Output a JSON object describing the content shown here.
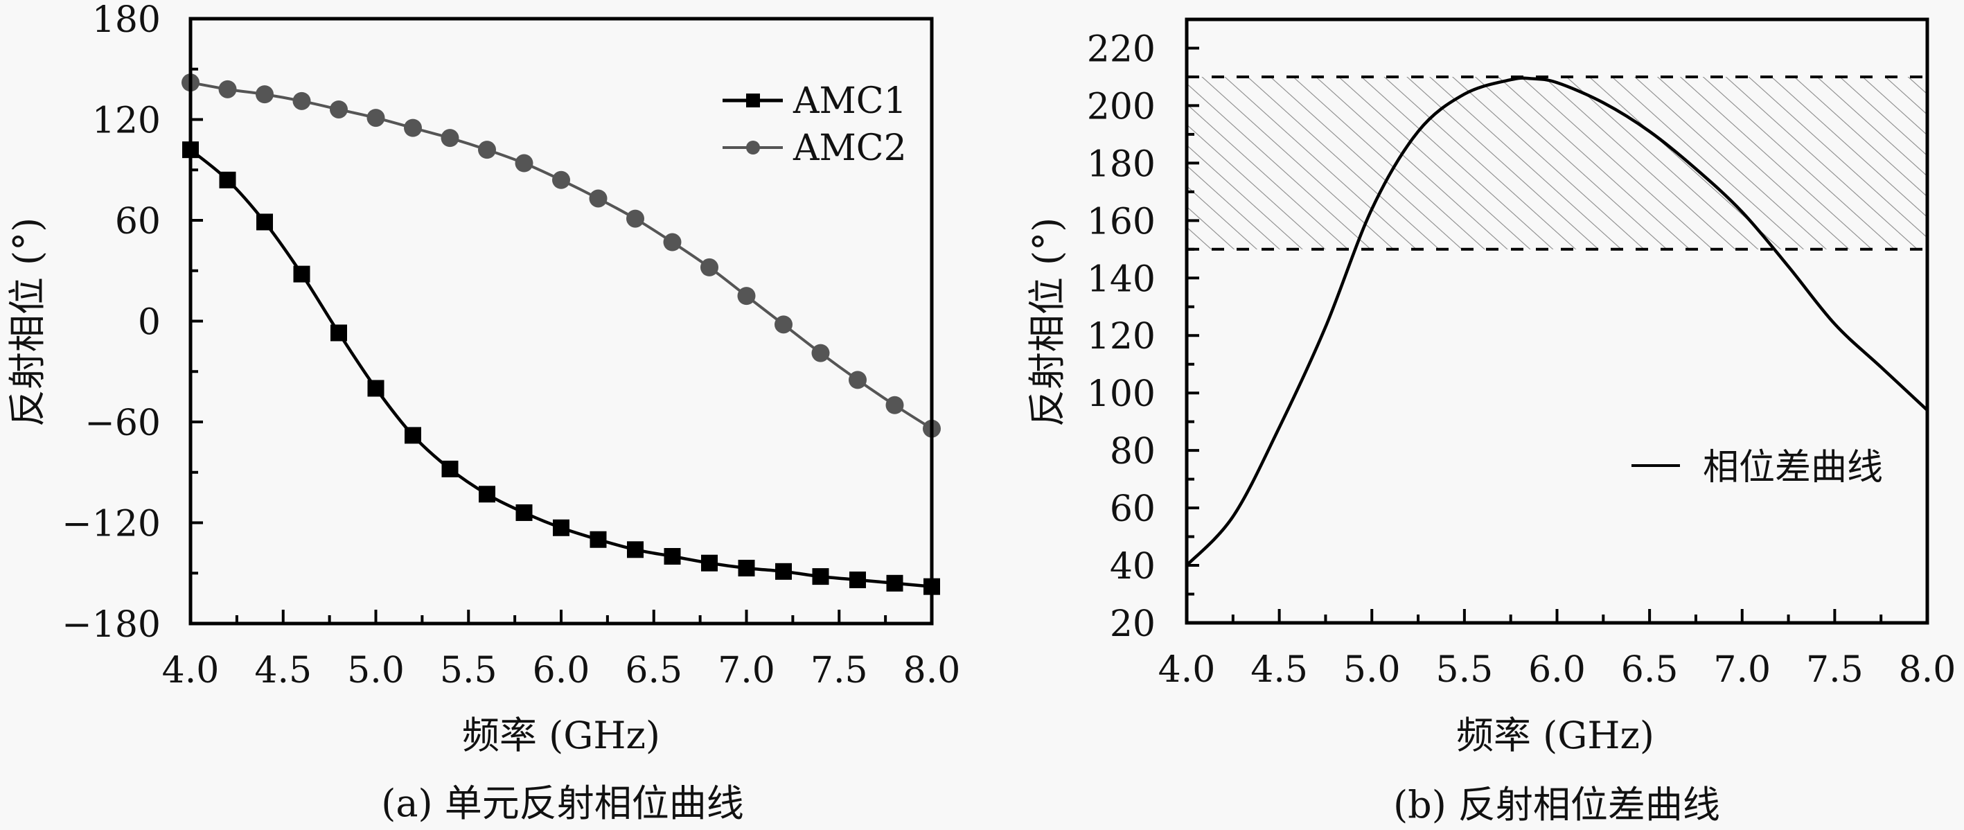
{
  "chart_data": [
    {
      "id": "a",
      "type": "line",
      "caption": "(a) 单元反射相位曲线",
      "xlabel": "频率 (GHz)",
      "ylabel": "反射相位 (°)",
      "xlim": [
        4.0,
        8.0
      ],
      "ylim": [
        -180,
        180
      ],
      "xticks": [
        4.0,
        4.5,
        5.0,
        5.5,
        6.0,
        6.5,
        7.0,
        7.5,
        8.0
      ],
      "xtick_labels": [
        "4.0",
        "4.5",
        "5.0",
        "5.5",
        "6.0",
        "6.5",
        "7.0",
        "7.5",
        "8.0"
      ],
      "yticks": [
        -180,
        -120,
        -60,
        0,
        60,
        120,
        180
      ],
      "ytick_labels": [
        "−180",
        "−120",
        "−60",
        "0",
        "60",
        "120",
        "180"
      ],
      "grid": false,
      "legend_position": "top-right",
      "x": [
        4.0,
        4.2,
        4.4,
        4.6,
        4.8,
        5.0,
        5.2,
        5.4,
        5.6,
        5.8,
        6.0,
        6.2,
        6.4,
        6.6,
        6.8,
        7.0,
        7.2,
        7.4,
        7.6,
        7.8,
        8.0
      ],
      "series": [
        {
          "name": "AMC1",
          "marker": "square",
          "color": "#000000",
          "values": [
            102,
            84,
            59,
            28,
            -7,
            -40,
            -68,
            -88,
            -103,
            -114,
            -123,
            -130,
            -136,
            -140,
            -144,
            -147,
            -149,
            -152,
            -154,
            -156,
            -158
          ]
        },
        {
          "name": "AMC2",
          "marker": "circle",
          "color": "#555555",
          "values": [
            142,
            138,
            135,
            131,
            126,
            121,
            115,
            109,
            102,
            94,
            84,
            73,
            61,
            47,
            32,
            15,
            -2,
            -19,
            -35,
            -50,
            -64
          ]
        }
      ]
    },
    {
      "id": "b",
      "type": "line",
      "caption": "(b) 反射相位差曲线",
      "xlabel": "频率 (GHz)",
      "ylabel": "反射相位 (°)",
      "xlim": [
        4.0,
        8.0
      ],
      "ylim": [
        20,
        230
      ],
      "xticks": [
        4.0,
        4.5,
        5.0,
        5.5,
        6.0,
        6.5,
        7.0,
        7.5,
        8.0
      ],
      "xtick_labels": [
        "4.0",
        "4.5",
        "5.0",
        "5.5",
        "6.0",
        "6.5",
        "7.0",
        "7.5",
        "8.0"
      ],
      "yticks": [
        20,
        40,
        60,
        80,
        100,
        120,
        140,
        160,
        180,
        200,
        220
      ],
      "ytick_labels": [
        "20",
        "40",
        "60",
        "80",
        "100",
        "120",
        "140",
        "160",
        "180",
        "200",
        "220"
      ],
      "grid": false,
      "legend_position": "center-right",
      "shaded_band": {
        "y_min": 150,
        "y_max": 210,
        "style": "hatched",
        "border": "dashed"
      },
      "x": [
        4.0,
        4.25,
        4.5,
        4.75,
        5.0,
        5.25,
        5.5,
        5.75,
        5.86,
        6.0,
        6.25,
        6.5,
        6.75,
        7.0,
        7.25,
        7.5,
        7.75,
        8.0
      ],
      "series": [
        {
          "name": "相位差曲线",
          "marker": "none",
          "color": "#000000",
          "values": [
            40,
            57,
            88,
            123,
            164,
            191,
            204,
            209,
            209.4,
            208,
            201,
            191,
            178,
            163,
            144,
            124,
            109,
            94
          ]
        }
      ]
    }
  ]
}
